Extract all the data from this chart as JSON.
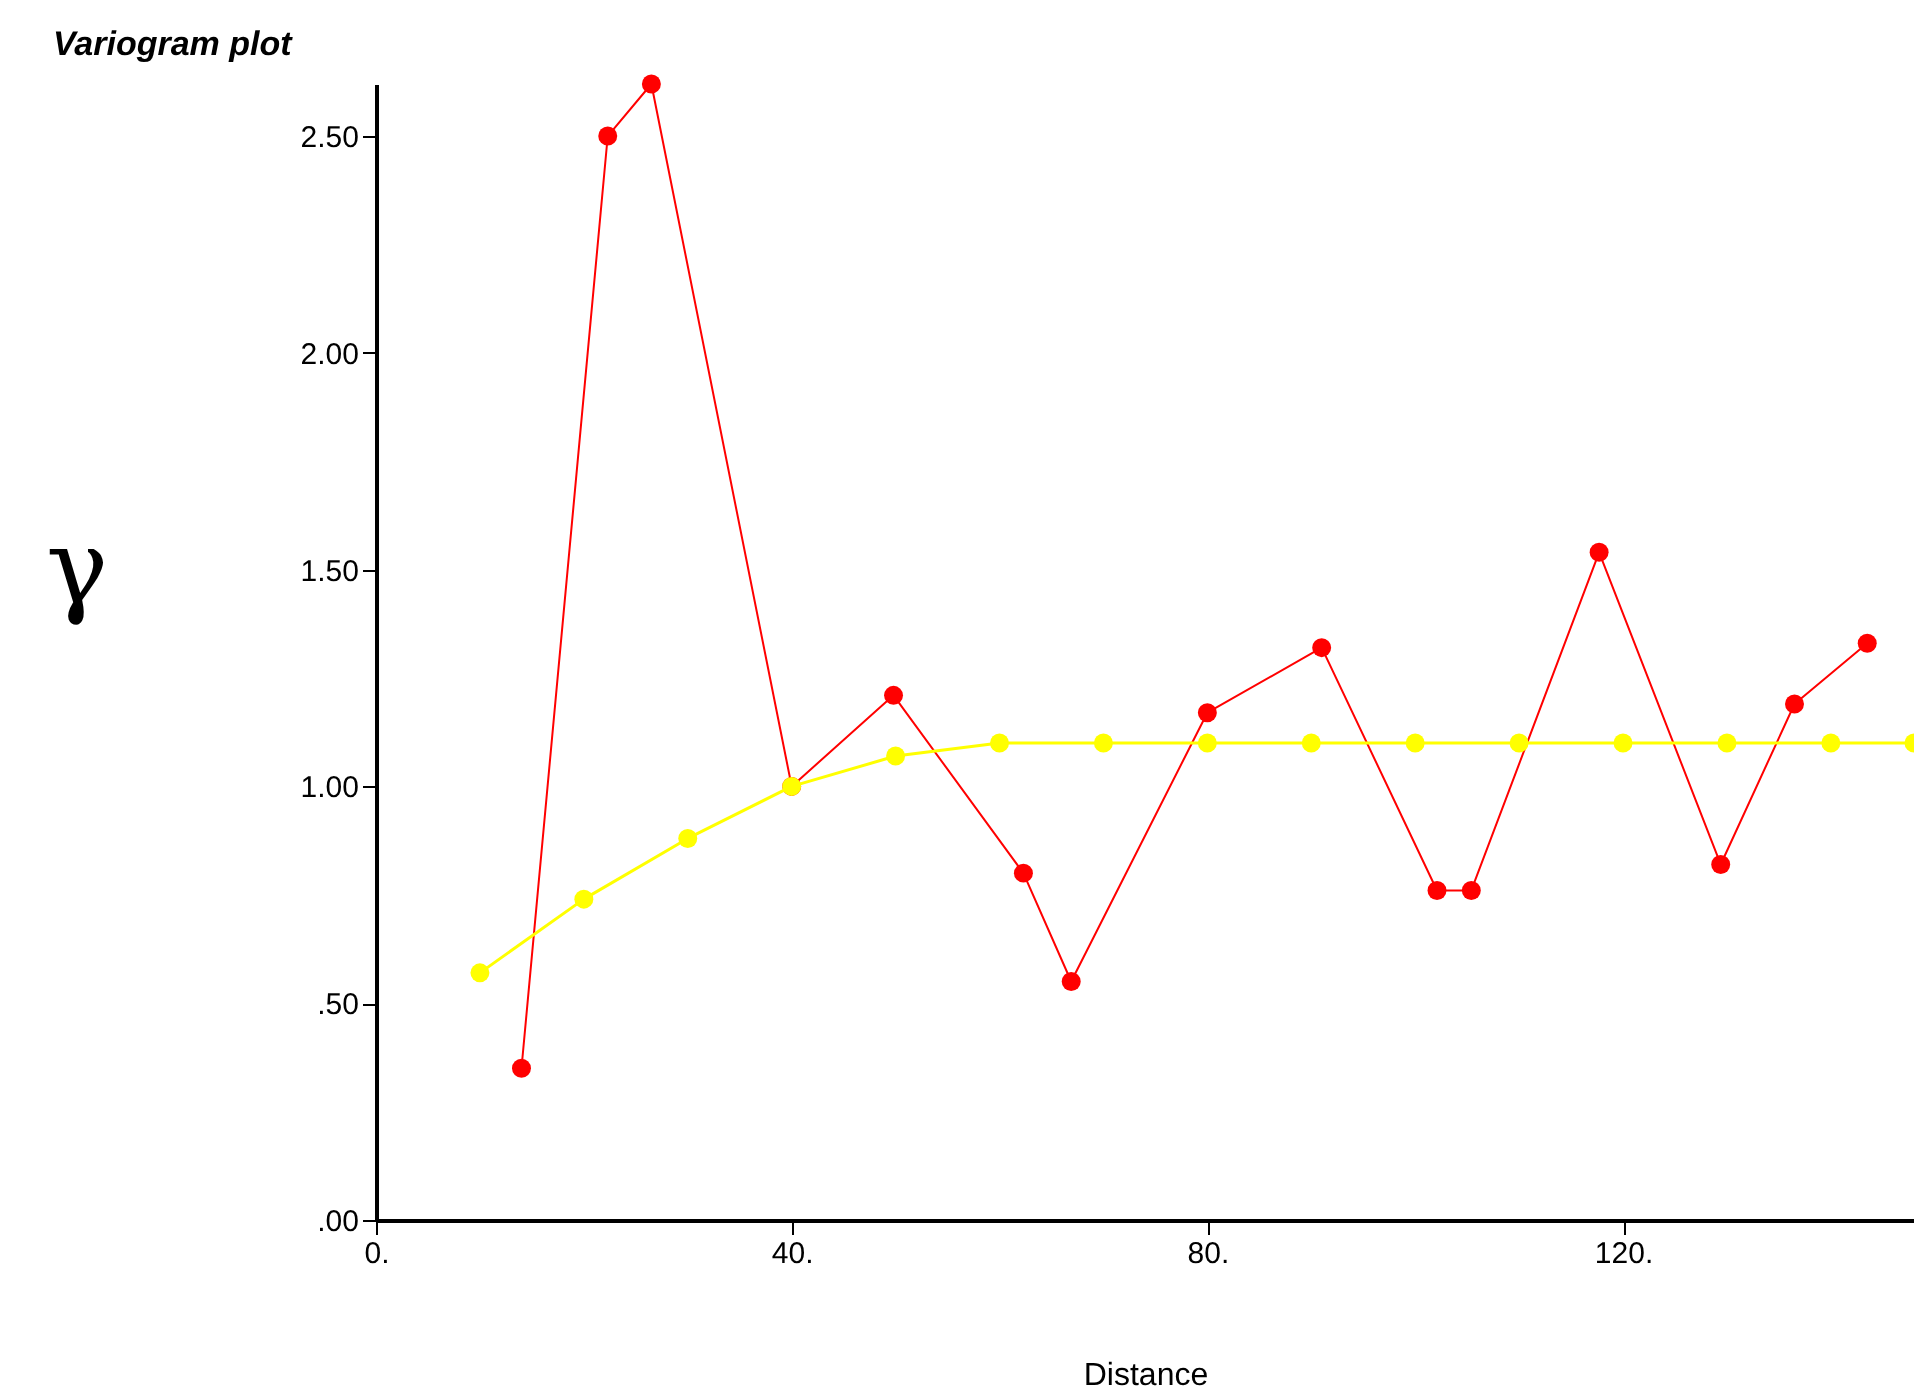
{
  "chart_data": {
    "type": "line",
    "title": "Variogram plot",
    "xlabel": "Distance",
    "ylabel": "γ",
    "xlim": [
      0,
      148
    ],
    "ylim": [
      0,
      2.62
    ],
    "xticks": [
      {
        "value": 0,
        "label": "0."
      },
      {
        "value": 40,
        "label": "40."
      },
      {
        "value": 80,
        "label": "80."
      },
      {
        "value": 120,
        "label": "120."
      }
    ],
    "yticks": [
      {
        "value": 0,
        "label": ".00"
      },
      {
        "value": 0.5,
        "label": ".50"
      },
      {
        "value": 1,
        "label": "1.00"
      },
      {
        "value": 1.5,
        "label": "1.50"
      },
      {
        "value": 2,
        "label": "2.00"
      },
      {
        "value": 2.5,
        "label": "2.50"
      }
    ],
    "series": [
      {
        "color": "#ff0000",
        "x": [
          14,
          22.3,
          26.5,
          40,
          49.8,
          62.3,
          66.9,
          80,
          91,
          102.1,
          105.4,
          117.7,
          129.4,
          136.5,
          143.5
        ],
        "values": [
          0.35,
          2.5,
          2.62,
          1.0,
          1.21,
          0.8,
          0.55,
          1.17,
          1.32,
          0.76,
          0.76,
          1.54,
          0.82,
          1.19,
          1.33
        ]
      },
      {
        "color": "#ffff00",
        "x": [
          10,
          20,
          30,
          40,
          50,
          60,
          70,
          80,
          90,
          100,
          110,
          120,
          130,
          140,
          148
        ],
        "values": [
          0.57,
          0.74,
          0.88,
          1.0,
          1.07,
          1.1,
          1.1,
          1.1,
          1.1,
          1.1,
          1.1,
          1.1,
          1.1,
          1.1,
          1.1
        ]
      }
    ],
    "marker": "circle",
    "grid": false
  }
}
